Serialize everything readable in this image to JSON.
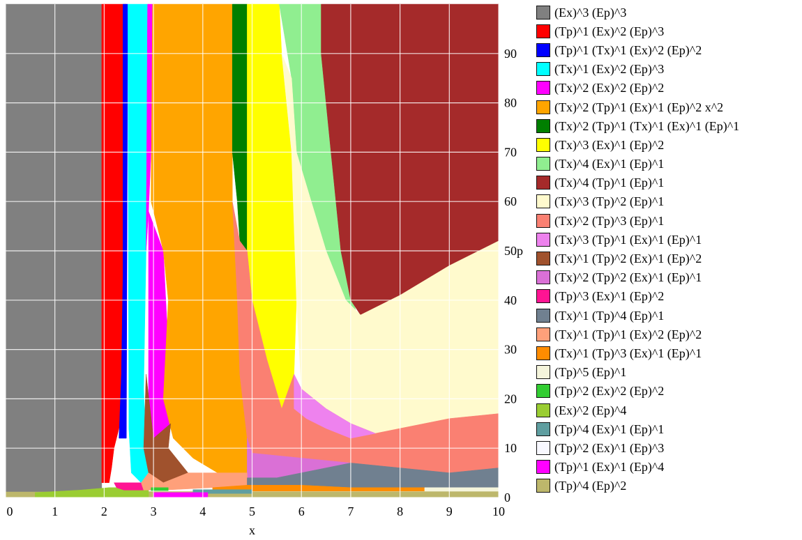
{
  "chart_data": {
    "type": "area",
    "xlabel": "x",
    "xlim": [
      0,
      10
    ],
    "ylim": [
      0,
      100
    ],
    "x_ticks": [
      "0",
      "1",
      "2",
      "3",
      "4",
      "5",
      "6",
      "7",
      "8",
      "9",
      "10"
    ],
    "y_ticks": [
      "0",
      "10",
      "20",
      "30",
      "40",
      "50p",
      "60",
      "70",
      "80",
      "90"
    ],
    "y_tick_values": [
      0,
      10,
      20,
      30,
      40,
      50,
      60,
      70,
      80,
      90
    ],
    "grid": true,
    "legend_position": "right",
    "series": [
      {
        "name": "(Ex)^3 (Ep)^3",
        "color": "#808080"
      },
      {
        "name": "(Tp)^1 (Ex)^2 (Ep)^3",
        "color": "#ff0000"
      },
      {
        "name": "(Tp)^1 (Tx)^1 (Ex)^2 (Ep)^2",
        "color": "#0000ff"
      },
      {
        "name": "(Tx)^1 (Ex)^2 (Ep)^3",
        "color": "#00ffff"
      },
      {
        "name": "(Tx)^2 (Ex)^2 (Ep)^2",
        "color": "#ff00ff"
      },
      {
        "name": "(Tx)^2 (Tp)^1 (Ex)^1 (Ep)^2 x^2",
        "color": "#ffa500"
      },
      {
        "name": "(Tx)^2 (Tp)^1 (Tx)^1 (Ex)^1 (Ep)^1",
        "color": "#007f00"
      },
      {
        "name": "(Tx)^3 (Ex)^1 (Ep)^2",
        "color": "#ffff00"
      },
      {
        "name": "(Tx)^4 (Ex)^1 (Ep)^1",
        "color": "#90ee90"
      },
      {
        "name": "(Tx)^4 (Tp)^1 (Ep)^1",
        "color": "#a52a2a"
      },
      {
        "name": "(Tx)^3 (Tp)^2 (Ep)^1",
        "color": "#fffacd"
      },
      {
        "name": "(Tx)^2 (Tp)^3 (Ep)^1",
        "color": "#fa8072"
      },
      {
        "name": "(Tx)^3 (Tp)^1 (Ex)^1 (Ep)^1",
        "color": "#ee82ee"
      },
      {
        "name": "(Tx)^1 (Tp)^2 (Ex)^1 (Ep)^2",
        "color": "#a0522d"
      },
      {
        "name": "(Tx)^2 (Tp)^2 (Ex)^1 (Ep)^1",
        "color": "#da70d6"
      },
      {
        "name": "(Tp)^3 (Ex)^1 (Ep)^2",
        "color": "#ff1493"
      },
      {
        "name": "(Tx)^1 (Tp)^4 (Ep)^1",
        "color": "#708090"
      },
      {
        "name": "(Tx)^1 (Tp)^1 (Ex)^2 (Ep)^2",
        "color": "#ffa07a"
      },
      {
        "name": "(Tx)^1 (Tp)^3 (Ex)^1 (Ep)^1",
        "color": "#ff8c00"
      },
      {
        "name": "(Tp)^5 (Ep)^1",
        "color": "#f5f5dc"
      },
      {
        "name": "(Tp)^2 (Ex)^2 (Ep)^2",
        "color": "#32cd32"
      },
      {
        "name": "(Ex)^2 (Ep)^4",
        "color": "#9acd32"
      },
      {
        "name": "(Tp)^4 (Ex)^1 (Ep)^1",
        "color": "#5f9ea0"
      },
      {
        "name": "(Tp)^2 (Ex)^1 (Ep)^3",
        "color": "#f8f8ff"
      },
      {
        "name": "(Tp)^1 (Ex)^1 (Ep)^4",
        "color": "#ff00ff"
      },
      {
        "name": "(Tp)^4 (Ep)^2",
        "color": "#bdb76b"
      }
    ],
    "regions": [
      {
        "series": 25,
        "points": [
          [
            0,
            0
          ],
          [
            10,
            0
          ],
          [
            10,
            1.2
          ],
          [
            0,
            1.2
          ]
        ]
      },
      {
        "series": 0,
        "points": [
          [
            0,
            1.2
          ],
          [
            1.95,
            1.2
          ],
          [
            1.95,
            100
          ],
          [
            0,
            100
          ]
        ]
      },
      {
        "series": 21,
        "points": [
          [
            0.6,
            0
          ],
          [
            2.9,
            0
          ],
          [
            2.9,
            2
          ],
          [
            2.1,
            2
          ],
          [
            1.5,
            1.5
          ],
          [
            0.6,
            1
          ]
        ]
      },
      {
        "series": 1,
        "points": [
          [
            1.95,
            100
          ],
          [
            2.45,
            100
          ],
          [
            2.45,
            18
          ],
          [
            2.3,
            14
          ],
          [
            2.2,
            10
          ],
          [
            2.15,
            6
          ],
          [
            2.1,
            3
          ],
          [
            1.95,
            3
          ]
        ]
      },
      {
        "series": 2,
        "points": [
          [
            2.38,
            100
          ],
          [
            2.48,
            100
          ],
          [
            2.45,
            12
          ],
          [
            2.3,
            12
          ],
          [
            2.35,
            25
          ],
          [
            2.38,
            45
          ]
        ]
      },
      {
        "series": 3,
        "points": [
          [
            2.48,
            100
          ],
          [
            2.88,
            100
          ],
          [
            2.85,
            50
          ],
          [
            2.8,
            22
          ],
          [
            2.85,
            10
          ],
          [
            2.9,
            5
          ],
          [
            2.75,
            3
          ],
          [
            2.55,
            5
          ],
          [
            2.5,
            14
          ]
        ]
      },
      {
        "series": 15,
        "points": [
          [
            2.2,
            3
          ],
          [
            2.75,
            3
          ],
          [
            2.8,
            1.5
          ],
          [
            2.4,
            1.5
          ],
          [
            2.25,
            2
          ]
        ]
      },
      {
        "series": 4,
        "points": [
          [
            2.88,
            100
          ],
          [
            2.98,
            100
          ],
          [
            2.95,
            70
          ],
          [
            2.9,
            58
          ],
          [
            2.85,
            50
          ]
        ]
      },
      {
        "series": 4,
        "points": [
          [
            2.9,
            58
          ],
          [
            3.2,
            50
          ],
          [
            3.3,
            30
          ],
          [
            3.35,
            15
          ],
          [
            3.0,
            12
          ],
          [
            2.9,
            20
          ]
        ]
      },
      {
        "series": 5,
        "points": [
          [
            2.98,
            100
          ],
          [
            4.6,
            100
          ],
          [
            4.6,
            60
          ],
          [
            4.7,
            40
          ],
          [
            4.75,
            25
          ],
          [
            4.9,
            12
          ],
          [
            4.9,
            5
          ],
          [
            4.3,
            5
          ],
          [
            3.8,
            8
          ],
          [
            3.4,
            12
          ],
          [
            3.2,
            20
          ],
          [
            3.3,
            40
          ],
          [
            3.2,
            50
          ],
          [
            2.95,
            60
          ]
        ]
      },
      {
        "series": 6,
        "points": [
          [
            4.6,
            100
          ],
          [
            4.9,
            100
          ],
          [
            4.9,
            50
          ],
          [
            4.75,
            52
          ],
          [
            4.7,
            60
          ],
          [
            4.6,
            70
          ]
        ]
      },
      {
        "series": 7,
        "points": [
          [
            4.9,
            100
          ],
          [
            5.55,
            100
          ],
          [
            5.6,
            90
          ],
          [
            5.8,
            70
          ],
          [
            5.9,
            40
          ],
          [
            5.85,
            25
          ],
          [
            5.6,
            18
          ],
          [
            5.3,
            28
          ],
          [
            5.0,
            40
          ],
          [
            4.9,
            50
          ]
        ]
      },
      {
        "series": 8,
        "points": [
          [
            5.55,
            100
          ],
          [
            6.4,
            100
          ],
          [
            6.4,
            90
          ],
          [
            6.6,
            70
          ],
          [
            6.8,
            50
          ],
          [
            7.1,
            38
          ],
          [
            6.9,
            40
          ],
          [
            6.5,
            50
          ],
          [
            6.2,
            60
          ],
          [
            5.9,
            70
          ],
          [
            5.8,
            85
          ]
        ]
      },
      {
        "series": 9,
        "points": [
          [
            6.4,
            100
          ],
          [
            10,
            100
          ],
          [
            10,
            52
          ],
          [
            9,
            47
          ],
          [
            8,
            41
          ],
          [
            7.2,
            37
          ],
          [
            7.0,
            40
          ],
          [
            6.8,
            50
          ],
          [
            6.6,
            70
          ],
          [
            6.4,
            90
          ]
        ]
      },
      {
        "series": 10,
        "points": [
          [
            5.6,
            90
          ],
          [
            5.8,
            85
          ],
          [
            5.9,
            70
          ],
          [
            6.2,
            60
          ],
          [
            6.5,
            50
          ],
          [
            6.9,
            40
          ],
          [
            7.2,
            37
          ],
          [
            8,
            41
          ],
          [
            9,
            47
          ],
          [
            10,
            52
          ],
          [
            10,
            17
          ],
          [
            9,
            16
          ],
          [
            8,
            14
          ],
          [
            7.5,
            13
          ],
          [
            7,
            15
          ],
          [
            6.5,
            18
          ],
          [
            6,
            22
          ],
          [
            5.9,
            40
          ],
          [
            5.8,
            70
          ]
        ]
      },
      {
        "series": 11,
        "points": [
          [
            4.6,
            60
          ],
          [
            4.75,
            52
          ],
          [
            4.9,
            50
          ],
          [
            5.0,
            40
          ],
          [
            5.3,
            28
          ],
          [
            5.6,
            18
          ],
          [
            5.85,
            25
          ],
          [
            6,
            22
          ],
          [
            6.5,
            18
          ],
          [
            7,
            15
          ],
          [
            7.5,
            13
          ],
          [
            8,
            14
          ],
          [
            9,
            16
          ],
          [
            10,
            17
          ],
          [
            10,
            6
          ],
          [
            9,
            5
          ],
          [
            8,
            6
          ],
          [
            7,
            7
          ],
          [
            6,
            8
          ],
          [
            5,
            9
          ],
          [
            4.9,
            12
          ],
          [
            4.75,
            25
          ],
          [
            4.7,
            40
          ]
        ]
      },
      {
        "series": 12,
        "points": [
          [
            5.85,
            25
          ],
          [
            6,
            22
          ],
          [
            6.5,
            18
          ],
          [
            7,
            15
          ],
          [
            7.5,
            13
          ],
          [
            7,
            12
          ],
          [
            6.5,
            14
          ],
          [
            6.1,
            16
          ],
          [
            5.85,
            18
          ]
        ]
      },
      {
        "series": 14,
        "points": [
          [
            4.9,
            12
          ],
          [
            5,
            9
          ],
          [
            6,
            8
          ],
          [
            7,
            7
          ],
          [
            7,
            7
          ],
          [
            6.5,
            6
          ],
          [
            5.5,
            4
          ],
          [
            4.9,
            4
          ]
        ]
      },
      {
        "series": 13,
        "points": [
          [
            2.85,
            25
          ],
          [
            3.0,
            12
          ],
          [
            3.35,
            15
          ],
          [
            3.3,
            10
          ],
          [
            3.7,
            5
          ],
          [
            3.2,
            3
          ],
          [
            2.9,
            5
          ],
          [
            2.8,
            10
          ]
        ]
      },
      {
        "series": 17,
        "points": [
          [
            2.75,
            3
          ],
          [
            2.9,
            5
          ],
          [
            3.2,
            3
          ],
          [
            3.7,
            5
          ],
          [
            4.3,
            5
          ],
          [
            4.9,
            5
          ],
          [
            4.9,
            2.5
          ],
          [
            4.2,
            2
          ],
          [
            3.2,
            1.5
          ],
          [
            2.8,
            1.5
          ]
        ]
      },
      {
        "series": 16,
        "points": [
          [
            4.9,
            4
          ],
          [
            5.5,
            4
          ],
          [
            6.5,
            6
          ],
          [
            7,
            7
          ],
          [
            8,
            6
          ],
          [
            9,
            5
          ],
          [
            10,
            6
          ],
          [
            10,
            2
          ],
          [
            7,
            2
          ],
          [
            6,
            2.5
          ],
          [
            4.9,
            2.5
          ]
        ]
      },
      {
        "series": 18,
        "points": [
          [
            4.2,
            2
          ],
          [
            4.9,
            2.5
          ],
          [
            6,
            2.5
          ],
          [
            7,
            2
          ],
          [
            8.5,
            2
          ],
          [
            8.5,
            1.3
          ],
          [
            4.2,
            1.3
          ]
        ]
      },
      {
        "series": 19,
        "points": [
          [
            8.5,
            1.3
          ],
          [
            10,
            1.3
          ],
          [
            10,
            2
          ],
          [
            8.5,
            2
          ]
        ]
      },
      {
        "series": 22,
        "points": [
          [
            3.8,
            0.8
          ],
          [
            5.0,
            0.8
          ],
          [
            5.0,
            1.6
          ],
          [
            3.8,
            1.6
          ]
        ]
      },
      {
        "series": 20,
        "points": [
          [
            2.95,
            1.4
          ],
          [
            3.3,
            1.4
          ],
          [
            3.3,
            2
          ],
          [
            2.95,
            2
          ]
        ]
      },
      {
        "series": 24,
        "points": [
          [
            3.0,
            0
          ],
          [
            4.1,
            0
          ],
          [
            4.1,
            1
          ],
          [
            3.0,
            1
          ]
        ]
      }
    ]
  }
}
